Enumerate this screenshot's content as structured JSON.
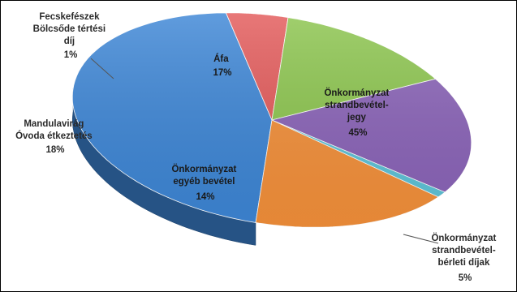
{
  "chart_data": {
    "type": "pie",
    "style": "3d",
    "legend": "none",
    "colors": {
      "blue": "#3d86d6",
      "red": "#e35a5a",
      "green": "#8cc54e",
      "purple": "#8a63b8",
      "cyan": "#5ec3d8",
      "orange": "#f4903a",
      "border": "#000000"
    },
    "slices": [
      {
        "label": [
          "Önkormányzat",
          "strandbevétel-",
          "jegy"
        ],
        "percent_text": "45%",
        "value": 45,
        "color": "blue"
      },
      {
        "label": [
          "Önkormányzat",
          "strandbevétel-",
          "bérleti díjak"
        ],
        "percent_text": "5%",
        "value": 5,
        "color": "red"
      },
      {
        "label": [
          "Önkormányzat",
          "egyéb bevétel"
        ],
        "percent_text": "14%",
        "value": 14,
        "color": "green"
      },
      {
        "label": [
          "Mandulavirág",
          "Óvoda étkeztetés"
        ],
        "percent_text": "18%",
        "value": 18,
        "color": "purple"
      },
      {
        "label": [
          "Fecskefészek",
          "Bölcsőde tértési",
          "díj"
        ],
        "percent_text": "1%",
        "value": 1,
        "color": "cyan"
      },
      {
        "label": [
          "Áfa"
        ],
        "percent_text": "17%",
        "value": 17,
        "color": "orange"
      }
    ]
  }
}
